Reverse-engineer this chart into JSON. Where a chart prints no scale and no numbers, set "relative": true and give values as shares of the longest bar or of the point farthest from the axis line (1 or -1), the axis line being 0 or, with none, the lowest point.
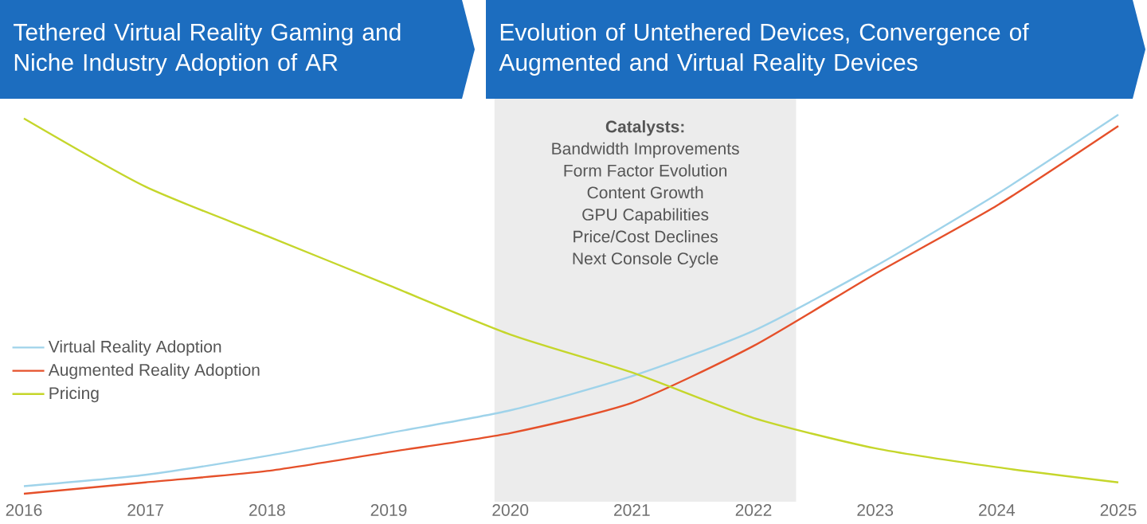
{
  "chart_data": {
    "type": "line",
    "relative": true,
    "x": [
      2016,
      2017,
      2018,
      2019,
      2020,
      2021,
      2022,
      2023,
      2024,
      2025
    ],
    "xlim": [
      2016,
      2025
    ],
    "xticks": [
      2016,
      2017,
      2018,
      2019,
      2020,
      2021,
      2022,
      2023,
      2024,
      2025
    ],
    "series": [
      {
        "name": "Virtual Reality Adoption",
        "color": "#9fd3ea",
        "values": [
          0.02,
          0.05,
          0.1,
          0.16,
          0.22,
          0.31,
          0.43,
          0.6,
          0.79,
          1
        ]
      },
      {
        "name": "Augmented Reality Adoption",
        "color": "#e5502a",
        "values": [
          0,
          0.03,
          0.06,
          0.11,
          0.16,
          0.24,
          0.39,
          0.58,
          0.76,
          0.97
        ]
      },
      {
        "name": "Pricing",
        "color": "#c5d62b",
        "values": [
          0.99,
          0.81,
          0.68,
          0.55,
          0.42,
          0.32,
          0.2,
          0.12,
          0.07,
          0.03
        ]
      }
    ],
    "bands": [
      {
        "axis": "x",
        "from": 2019.87,
        "to": 2022.35,
        "label": "Catalysts:",
        "color": "#ececec"
      }
    ],
    "annotations": [
      "Tethered Virtual Reality Gaming and Niche Industry Adoption of AR",
      "Evolution of Untethered Devices, Convergence of Augmented and Virtual Reality Devices",
      "Bandwidth Improvements",
      "Form Factor Evolution",
      "Content Growth",
      "GPU Capabilities",
      "Price/Cost Declines",
      "Next Console Cycle"
    ],
    "legend": "left",
    "grid": false,
    "marker": "none",
    "line_style": "solid"
  }
}
